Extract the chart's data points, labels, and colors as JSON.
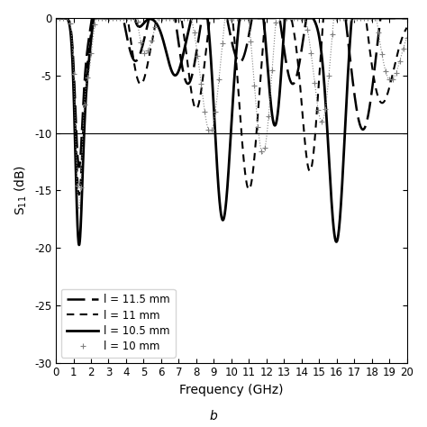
{
  "title": "b",
  "xlabel": "Frequency (GHz)",
  "ylabel": "S$_{11}$ (dB)",
  "xlim": [
    0,
    20
  ],
  "ylim": [
    -30,
    0
  ],
  "yticks": [
    0,
    -5,
    -10,
    -15,
    -20,
    -25,
    -30
  ],
  "xticks": [
    0,
    1,
    2,
    3,
    4,
    5,
    6,
    7,
    8,
    9,
    10,
    11,
    12,
    13,
    14,
    15,
    16,
    17,
    18,
    19,
    20
  ],
  "hline": -10,
  "background_color": "white",
  "figsize": [
    4.74,
    4.74
  ],
  "dpi": 100,
  "legend_labels": [
    "l = 11.5 mm",
    "l = 11 mm",
    "l = 10.5 mm",
    "l = 10 mm"
  ]
}
